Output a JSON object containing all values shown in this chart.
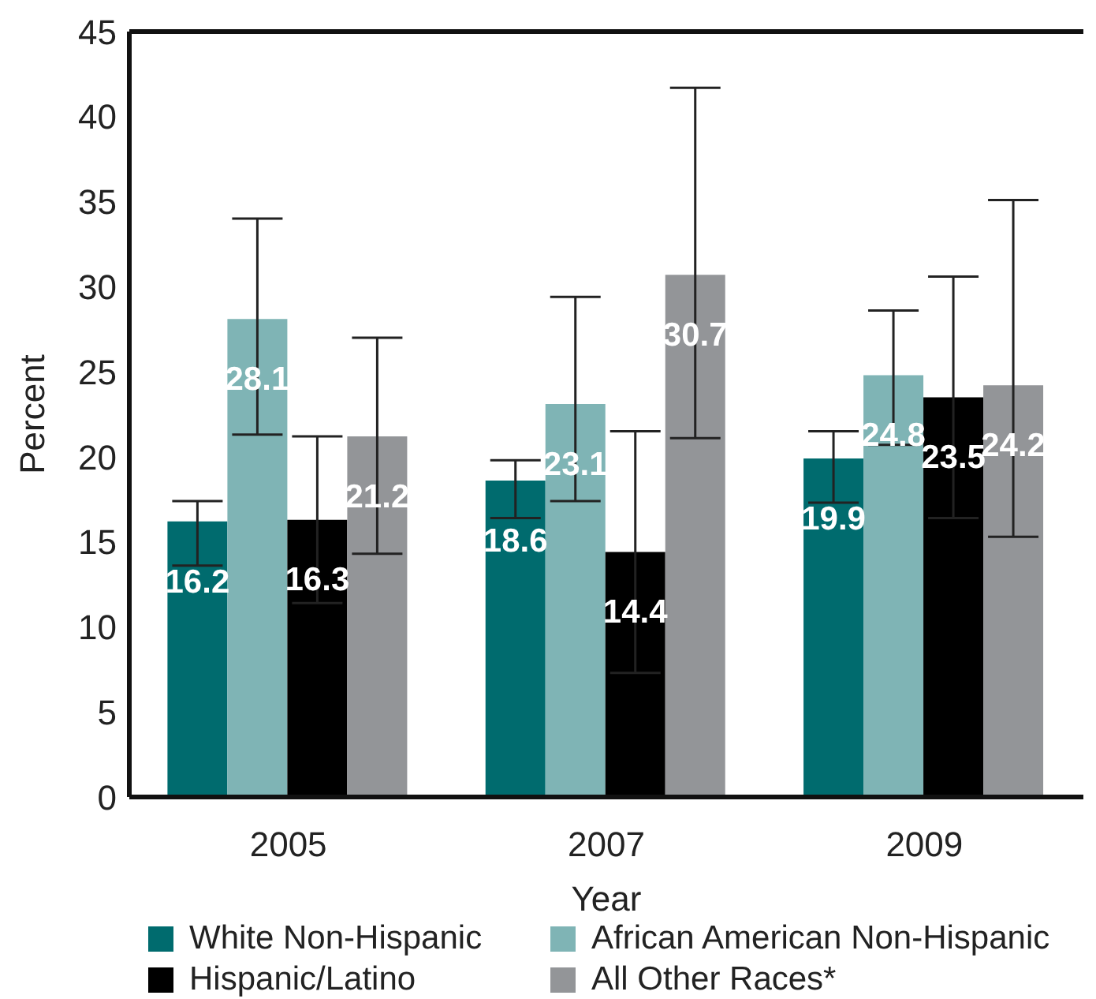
{
  "chart_data": {
    "type": "bar",
    "xlabel": "Year",
    "ylabel": "Percent",
    "categories": [
      "2005",
      "2007",
      "2009"
    ],
    "series": [
      {
        "name": "White Non-Hispanic",
        "color": "#006b6e",
        "values": [
          16.2,
          18.6,
          19.9
        ],
        "errors": [
          [
            13.6,
            17.4
          ],
          [
            16.4,
            19.8
          ],
          [
            17.3,
            21.5
          ]
        ]
      },
      {
        "name": "African American Non-Hispanic",
        "color": "#7fb4b5",
        "values": [
          28.1,
          23.1,
          24.8
        ],
        "errors": [
          [
            21.3,
            34.0
          ],
          [
            17.4,
            29.4
          ],
          [
            20.7,
            28.6
          ]
        ]
      },
      {
        "name": "Hispanic/Latino",
        "color": "#000000",
        "values": [
          16.3,
          14.4,
          23.5
        ],
        "errors": [
          [
            11.4,
            21.2
          ],
          [
            7.3,
            21.5
          ],
          [
            16.4,
            30.6
          ]
        ]
      },
      {
        "name": "All Other Races*",
        "color": "#939598",
        "values": [
          21.2,
          30.7,
          24.2
        ],
        "errors": [
          [
            14.3,
            27.0
          ],
          [
            21.1,
            41.7
          ],
          [
            15.3,
            35.1
          ]
        ]
      }
    ],
    "ylim": [
      0,
      45
    ],
    "yticks": [
      0,
      5,
      10,
      15,
      20,
      25,
      30,
      35,
      40,
      45
    ],
    "grid": false,
    "legend": "bottom",
    "data_labels": true
  }
}
